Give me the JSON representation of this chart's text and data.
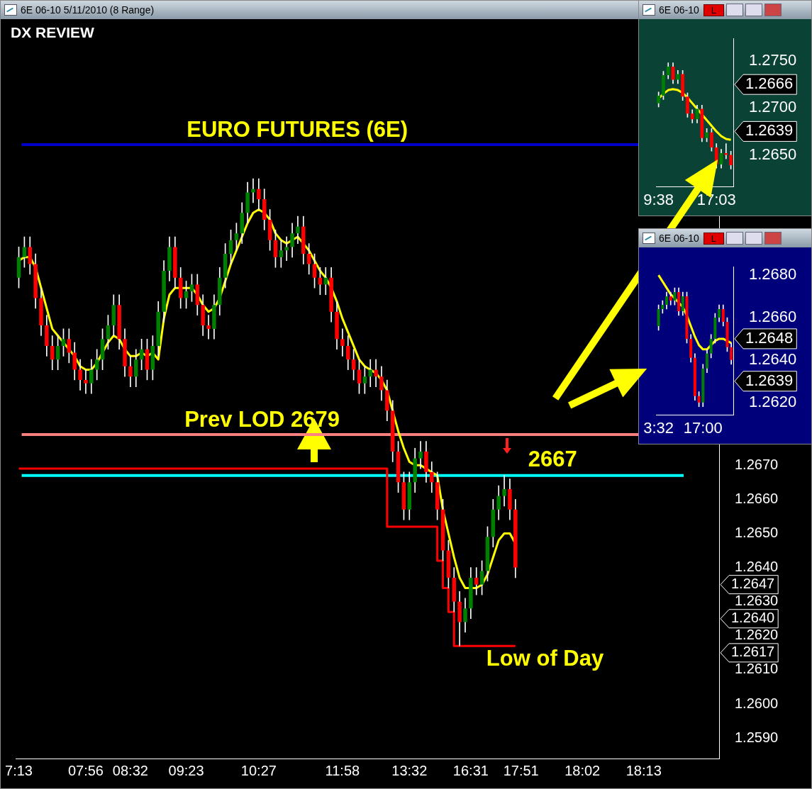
{
  "chart_data": [
    {
      "type": "candlestick",
      "title": "6E 06-10  5/11/2010 (8 Range)",
      "subtitle": "DX REVIEW",
      "categories": [
        "7:13",
        null,
        null,
        null,
        null,
        null,
        null,
        null,
        null,
        null,
        null,
        null,
        "07:56",
        null,
        null,
        null,
        null,
        null,
        null,
        null,
        "08:32",
        null,
        null,
        null,
        null,
        null,
        null,
        null,
        null,
        null,
        "09:23",
        null,
        null,
        null,
        null,
        null,
        null,
        null,
        null,
        null,
        null,
        null,
        null,
        "10:27",
        null,
        null,
        null,
        null,
        null,
        null,
        null,
        null,
        null,
        null,
        null,
        null,
        null,
        null,
        "11:58",
        null,
        null,
        null,
        null,
        null,
        null,
        null,
        null,
        null,
        null,
        null,
        "13:32",
        null,
        null,
        null,
        null,
        null,
        null,
        null,
        null,
        null,
        null,
        "16:31",
        null,
        null,
        null,
        null,
        null,
        null,
        null,
        null,
        "17:51",
        null,
        null,
        null,
        null,
        null,
        null,
        null,
        null,
        null,
        null,
        "18:02",
        null,
        null,
        null,
        null,
        null,
        null,
        null,
        null,
        null,
        null,
        "18:13",
        null,
        null,
        null,
        null,
        null,
        null,
        null,
        null,
        null,
        null,
        null,
        null,
        null
      ],
      "ohlc": [
        [
          1.2725,
          1.2734,
          1.2722,
          1.2731
        ],
        [
          1.2731,
          1.2737,
          1.2728,
          1.2734
        ],
        [
          1.2734,
          1.2737,
          1.2726,
          1.2729
        ],
        [
          1.2729,
          1.2732,
          1.2716,
          1.2719
        ],
        [
          1.2719,
          1.2722,
          1.2708,
          1.2711
        ],
        [
          1.2711,
          1.2714,
          1.2702,
          1.2705
        ],
        [
          1.2705,
          1.2708,
          1.2698,
          1.2701
        ],
        [
          1.2701,
          1.2708,
          1.2698,
          1.2705
        ],
        [
          1.2705,
          1.271,
          1.2702,
          1.2707
        ],
        [
          1.2707,
          1.271,
          1.27,
          1.2703
        ],
        [
          1.2703,
          1.2706,
          1.2695,
          1.2698
        ],
        [
          1.2698,
          1.2701,
          1.2692,
          1.2695
        ],
        [
          1.2695,
          1.2698,
          1.2691,
          1.2694
        ],
        [
          1.2694,
          1.2701,
          1.2691,
          1.2698
        ],
        [
          1.2698,
          1.2704,
          1.2695,
          1.2701
        ],
        [
          1.2701,
          1.271,
          1.2698,
          1.2707
        ],
        [
          1.2707,
          1.2714,
          1.2704,
          1.2711
        ],
        [
          1.2711,
          1.272,
          1.2708,
          1.2717
        ],
        [
          1.2717,
          1.272,
          1.2704,
          1.2707
        ],
        [
          1.2707,
          1.271,
          1.2696,
          1.2699
        ],
        [
          1.2699,
          1.2702,
          1.2693,
          1.2696
        ],
        [
          1.2696,
          1.2704,
          1.2693,
          1.2701
        ],
        [
          1.2701,
          1.2707,
          1.2698,
          1.2704
        ],
        [
          1.2704,
          1.2707,
          1.2695,
          1.2698
        ],
        [
          1.2698,
          1.2708,
          1.2695,
          1.2705
        ],
        [
          1.2705,
          1.2718,
          1.2702,
          1.2715
        ],
        [
          1.2715,
          1.273,
          1.2712,
          1.2727
        ],
        [
          1.2727,
          1.2737,
          1.2724,
          1.2734
        ],
        [
          1.2734,
          1.2737,
          1.2722,
          1.2725
        ],
        [
          1.2725,
          1.2728,
          1.2716,
          1.2719
        ],
        [
          1.2719,
          1.2724,
          1.2716,
          1.2721
        ],
        [
          1.2721,
          1.2726,
          1.2718,
          1.2723
        ],
        [
          1.2723,
          1.2726,
          1.2714,
          1.2717
        ],
        [
          1.2717,
          1.272,
          1.2708,
          1.2711
        ],
        [
          1.2711,
          1.2714,
          1.2707,
          1.271
        ],
        [
          1.271,
          1.272,
          1.2707,
          1.2717
        ],
        [
          1.2717,
          1.2728,
          1.2714,
          1.2725
        ],
        [
          1.2725,
          1.2735,
          1.2722,
          1.2732
        ],
        [
          1.2732,
          1.2739,
          1.2729,
          1.2736
        ],
        [
          1.2736,
          1.2741,
          1.2733,
          1.2738
        ],
        [
          1.2738,
          1.2747,
          1.2735,
          1.2744
        ],
        [
          1.2744,
          1.2753,
          1.2741,
          1.275
        ],
        [
          1.275,
          1.2754,
          1.2747,
          1.2751
        ],
        [
          1.2751,
          1.2754,
          1.2745,
          1.2748
        ],
        [
          1.2748,
          1.2751,
          1.2739,
          1.2742
        ],
        [
          1.2742,
          1.2745,
          1.2733,
          1.2736
        ],
        [
          1.2736,
          1.2739,
          1.2728,
          1.2731
        ],
        [
          1.2731,
          1.2736,
          1.2728,
          1.2733
        ],
        [
          1.2733,
          1.2737,
          1.273,
          1.2734
        ],
        [
          1.2734,
          1.2741,
          1.2731,
          1.2738
        ],
        [
          1.2738,
          1.2743,
          1.2735,
          1.274
        ],
        [
          1.274,
          1.2743,
          1.2729,
          1.2732
        ],
        [
          1.2732,
          1.2735,
          1.2726,
          1.2729
        ],
        [
          1.2729,
          1.2732,
          1.2722,
          1.2725
        ],
        [
          1.2725,
          1.2728,
          1.272,
          1.2723
        ],
        [
          1.2723,
          1.2728,
          1.272,
          1.2725
        ],
        [
          1.2725,
          1.2728,
          1.2712,
          1.2715
        ],
        [
          1.2715,
          1.2718,
          1.2704,
          1.2707
        ],
        [
          1.2707,
          1.271,
          1.2702,
          1.2705
        ],
        [
          1.2705,
          1.2708,
          1.2698,
          1.2701
        ],
        [
          1.2701,
          1.2704,
          1.2695,
          1.2698
        ],
        [
          1.2698,
          1.2701,
          1.2691,
          1.2694
        ],
        [
          1.2694,
          1.2699,
          1.2691,
          1.2696
        ],
        [
          1.2696,
          1.2701,
          1.2693,
          1.2698
        ],
        [
          1.2698,
          1.2701,
          1.2693,
          1.2696
        ],
        [
          1.2696,
          1.2699,
          1.2689,
          1.2692
        ],
        [
          1.2692,
          1.2695,
          1.2683,
          1.2686
        ],
        [
          1.2686,
          1.2689,
          1.2671,
          1.2674
        ],
        [
          1.2674,
          1.2677,
          1.2662,
          1.2665
        ],
        [
          1.2665,
          1.2668,
          1.2654,
          1.2657
        ],
        [
          1.2657,
          1.2668,
          1.2654,
          1.2665
        ],
        [
          1.2665,
          1.2675,
          1.2662,
          1.2672
        ],
        [
          1.2672,
          1.2677,
          1.2669,
          1.2674
        ],
        [
          1.2674,
          1.2677,
          1.2665,
          1.2668
        ],
        [
          1.2668,
          1.2671,
          1.2662,
          1.2665
        ],
        [
          1.2665,
          1.2668,
          1.2654,
          1.2657
        ],
        [
          1.2657,
          1.266,
          1.2642,
          1.2645
        ],
        [
          1.2645,
          1.2648,
          1.2634,
          1.2637
        ],
        [
          1.2637,
          1.264,
          1.2627,
          1.263
        ],
        [
          1.263,
          1.2633,
          1.2617,
          1.2624
        ],
        [
          1.2624,
          1.2631,
          1.2621,
          1.2628
        ],
        [
          1.2628,
          1.264,
          1.2625,
          1.2637
        ],
        [
          1.2637,
          1.264,
          1.2632,
          1.2635
        ],
        [
          1.2635,
          1.2642,
          1.2632,
          1.2639
        ],
        [
          1.2639,
          1.2652,
          1.2636,
          1.2649
        ],
        [
          1.2649,
          1.266,
          1.2646,
          1.2657
        ],
        [
          1.2657,
          1.2664,
          1.2654,
          1.2661
        ],
        [
          1.2661,
          1.2667,
          1.2658,
          1.2663
        ],
        [
          1.2663,
          1.2666,
          1.2654,
          1.2657
        ],
        [
          1.2657,
          1.266,
          1.2637,
          1.264
        ],
        null,
        null,
        null,
        null,
        null,
        null,
        null,
        null,
        null,
        null,
        null,
        null,
        null,
        null,
        null,
        null,
        null,
        null,
        null,
        null,
        null,
        null,
        null,
        null,
        null,
        null,
        null,
        null,
        null,
        null,
        null,
        null,
        null,
        null,
        null,
        null
      ],
      "series": [
        {
          "type": "line",
          "color": "#ffff00",
          "values": [
            1.273,
            1.2731,
            1.2731,
            1.2728,
            1.2722,
            1.2716,
            1.271,
            1.2708,
            1.2706,
            1.2704,
            1.2702,
            1.2699,
            1.2698,
            1.2698,
            1.27,
            1.2703,
            1.2706,
            1.2708,
            1.2707,
            1.2704,
            1.2702,
            1.2702,
            1.2703,
            1.2702,
            1.2703,
            1.2701,
            1.2713,
            1.272,
            1.2722,
            1.2722,
            1.2722,
            1.2722,
            1.272,
            1.2717,
            1.2715,
            1.2716,
            1.2719,
            1.2724,
            1.2729,
            1.2733,
            1.2737,
            1.2741,
            1.2744,
            1.2745,
            1.2744,
            1.2742,
            1.2738,
            1.2736,
            1.2735,
            1.2736,
            1.2737,
            1.2735,
            1.2733,
            1.273,
            1.2727,
            1.2725,
            1.2722,
            1.2718,
            1.2713,
            1.2709,
            1.2705,
            1.2701,
            1.2699,
            1.2698,
            1.2697,
            1.2695,
            1.2692,
            1.2686,
            1.268,
            1.2675,
            1.2671,
            1.267,
            1.267,
            1.2669,
            1.2668,
            1.2667,
            1.2657,
            1.265,
            1.2643,
            1.2637,
            1.2634,
            1.2634,
            1.2634,
            1.2635,
            1.2638,
            1.2643,
            1.2648,
            1.265,
            1.265,
            1.2647,
            null,
            null,
            null,
            null,
            null,
            null,
            null,
            null,
            null,
            null,
            null,
            null,
            null,
            null,
            null,
            null,
            null,
            null,
            null,
            null,
            null,
            null,
            null,
            null,
            null,
            null,
            null,
            null,
            null,
            null,
            null,
            null,
            null,
            null,
            null,
            null
          ]
        },
        {
          "type": "step",
          "color": "#ff0000",
          "values": [
            1.2669,
            1.2669,
            1.2669,
            1.2669,
            1.2669,
            1.2669,
            1.2669,
            1.2669,
            1.2669,
            1.2669,
            1.2669,
            1.2669,
            1.2669,
            1.2669,
            1.2669,
            1.2669,
            1.2669,
            1.2669,
            1.2669,
            1.2669,
            1.2669,
            1.2669,
            1.2669,
            1.2669,
            1.2669,
            1.2669,
            1.2669,
            1.2669,
            1.2669,
            1.2669,
            1.2669,
            1.2669,
            1.2669,
            1.2669,
            1.2669,
            1.2669,
            1.2669,
            1.2669,
            1.2669,
            1.2669,
            1.2669,
            1.2669,
            1.2669,
            1.2669,
            1.2669,
            1.2669,
            1.2669,
            1.2669,
            1.2669,
            1.2669,
            1.2669,
            1.2669,
            1.2669,
            1.2669,
            1.2669,
            1.2669,
            1.2669,
            1.2669,
            1.2669,
            1.2669,
            1.2669,
            1.2669,
            1.2669,
            1.2669,
            1.2669,
            1.2669,
            1.2669,
            1.2652,
            1.2652,
            1.2652,
            1.2652,
            1.2652,
            1.2652,
            1.2652,
            1.2652,
            1.2652,
            1.2642,
            1.2634,
            1.2627,
            1.2617,
            1.2617,
            1.2617,
            1.2617,
            1.2617,
            1.2617,
            1.2617,
            1.2617,
            1.2617,
            1.2617,
            1.2617,
            null,
            null,
            null,
            null,
            null,
            null,
            null,
            null,
            null,
            null,
            null,
            null,
            null,
            null,
            null,
            null,
            null,
            null,
            null,
            null,
            null,
            null,
            null,
            null,
            null,
            null,
            null,
            null,
            null,
            null,
            null,
            null,
            null,
            null,
            null,
            null
          ]
        }
      ],
      "ylim": [
        1.2584,
        1.2791
      ],
      "yticks": [
        {
          "value": 1.259,
          "label": "1.2590"
        },
        {
          "value": 1.26,
          "label": "1.2600"
        },
        {
          "value": 1.261,
          "label": "1.2610"
        },
        {
          "value": 1.262,
          "label": "1.2620"
        },
        {
          "value": 1.263,
          "label": "1.2630"
        },
        {
          "value": 1.264,
          "label": "1.2640"
        },
        {
          "value": 1.265,
          "label": "1.2650"
        },
        {
          "value": 1.266,
          "label": "1.2660"
        },
        {
          "value": 1.267,
          "label": "1.2670"
        }
      ],
      "ref_lines": [
        {
          "axis": "y",
          "value": 1.2764,
          "label": "EURO FUTURES (6E)",
          "color": "#0000cc"
        },
        {
          "axis": "y",
          "value": 1.2679,
          "label": "Prev LOD 2679",
          "color": "#ff8080"
        },
        {
          "axis": "y",
          "value": 1.2667,
          "color": "#00ffff"
        }
      ],
      "annotations": [
        {
          "text": "2667",
          "x": "17:51",
          "y": 1.2667
        },
        {
          "text": "Low of Day",
          "x": "16:31",
          "y": 1.2617
        },
        "1.2647",
        "1.2640",
        "1.2617"
      ]
    },
    {
      "type": "candlestick",
      "title": "6E 06-10",
      "categories": [
        "9:38",
        null,
        null,
        null,
        null,
        null,
        null,
        null,
        null,
        null,
        null,
        null,
        "17:03",
        null,
        null,
        null
      ],
      "ohlc": [
        [
          1.2705,
          1.2717,
          1.2701,
          1.2713
        ],
        [
          1.2713,
          1.2739,
          1.2709,
          1.2735
        ],
        [
          1.2735,
          1.2748,
          1.2731,
          1.2744
        ],
        [
          1.2744,
          1.2748,
          1.2726,
          1.273
        ],
        [
          1.273,
          1.274,
          1.2726,
          1.2736
        ],
        [
          1.2736,
          1.274,
          1.2708,
          1.2712
        ],
        [
          1.2712,
          1.2716,
          1.269,
          1.2694
        ],
        [
          1.2694,
          1.2698,
          1.2684,
          1.2688
        ],
        [
          1.2688,
          1.2703,
          1.2684,
          1.2699
        ],
        [
          1.2699,
          1.2703,
          1.2664,
          1.2668
        ],
        [
          1.2668,
          1.2678,
          1.2664,
          1.2674
        ],
        [
          1.2674,
          1.2678,
          1.2654,
          1.2658
        ],
        [
          1.2658,
          1.2662,
          1.2636,
          1.264
        ],
        [
          1.264,
          1.2656,
          1.2636,
          1.2652
        ],
        [
          1.2652,
          1.2662,
          1.2646,
          1.265
        ],
        [
          1.265,
          1.2654,
          1.2635,
          1.2639
        ]
      ],
      "series": [
        {
          "type": "line",
          "color": "#ffff00",
          "values": [
            1.271,
            1.2715,
            1.2719,
            1.272,
            1.2719,
            1.2716,
            1.2711,
            1.2705,
            1.2699,
            1.2693,
            1.2687,
            1.2681,
            1.2675,
            1.267,
            1.2667,
            1.2666
          ]
        }
      ],
      "ylim": [
        1.2616,
        1.2774
      ],
      "yticks": [
        {
          "value": 1.265,
          "label": "1.2650"
        },
        {
          "value": 1.27,
          "label": "1.2700"
        },
        {
          "value": 1.275,
          "label": "1.2750"
        }
      ],
      "annotations": [
        "L",
        "1.2666",
        "1.2639"
      ]
    },
    {
      "type": "candlestick",
      "title": "6E 06-10",
      "categories": [
        "3:32",
        null,
        null,
        null,
        null,
        null,
        null,
        null,
        null,
        null,
        null,
        "17:00",
        null,
        null,
        null,
        null,
        null,
        null,
        null
      ],
      "ohlc": [
        [
          1.2656,
          1.2666,
          1.2654,
          1.2664
        ],
        [
          1.2664,
          1.2668,
          1.2662,
          1.2666
        ],
        [
          1.2666,
          1.2672,
          1.2664,
          1.267
        ],
        [
          1.267,
          1.2672,
          1.2666,
          1.2668
        ],
        [
          1.2668,
          1.2674,
          1.2666,
          1.2672
        ],
        [
          1.2672,
          1.2674,
          1.2661,
          1.2663
        ],
        [
          1.2663,
          1.2672,
          1.2661,
          1.267
        ],
        [
          1.267,
          1.2672,
          1.2648,
          1.265
        ],
        [
          1.265,
          1.2652,
          1.2639,
          1.2641
        ],
        [
          1.2641,
          1.2643,
          1.2621,
          1.2623
        ],
        [
          1.2623,
          1.2625,
          1.2618,
          1.262
        ],
        [
          1.262,
          1.2638,
          1.2618,
          1.2636
        ],
        [
          1.2636,
          1.2645,
          1.2634,
          1.2643
        ],
        [
          1.2643,
          1.2652,
          1.2641,
          1.265
        ],
        [
          1.265,
          1.2662,
          1.2648,
          1.266
        ],
        [
          1.266,
          1.2666,
          1.2658,
          1.2664
        ],
        [
          1.2664,
          1.2666,
          1.2656,
          1.2658
        ],
        [
          1.2658,
          1.266,
          1.2644,
          1.2646
        ],
        [
          1.2646,
          1.2648,
          1.2638,
          1.264
        ]
      ],
      "series": [
        {
          "type": "line",
          "color": "#ffff00",
          "values": [
            1.268,
            1.2677,
            1.2674,
            1.2671,
            1.2669,
            1.2667,
            1.2665,
            1.2661,
            1.2656,
            1.2651,
            1.2647,
            1.2645,
            1.2645,
            1.2647,
            1.2649,
            1.265,
            1.265,
            1.2649,
            1.2648
          ]
        }
      ],
      "ylim": [
        1.2614,
        1.2684
      ],
      "yticks": [
        {
          "value": 1.262,
          "label": "1.2620"
        },
        {
          "value": 1.264,
          "label": "1.2640"
        },
        {
          "value": 1.266,
          "label": "1.2660"
        },
        {
          "value": 1.268,
          "label": "1.2680"
        }
      ],
      "annotations": [
        "L",
        "1.2648",
        "1.2639"
      ]
    }
  ]
}
